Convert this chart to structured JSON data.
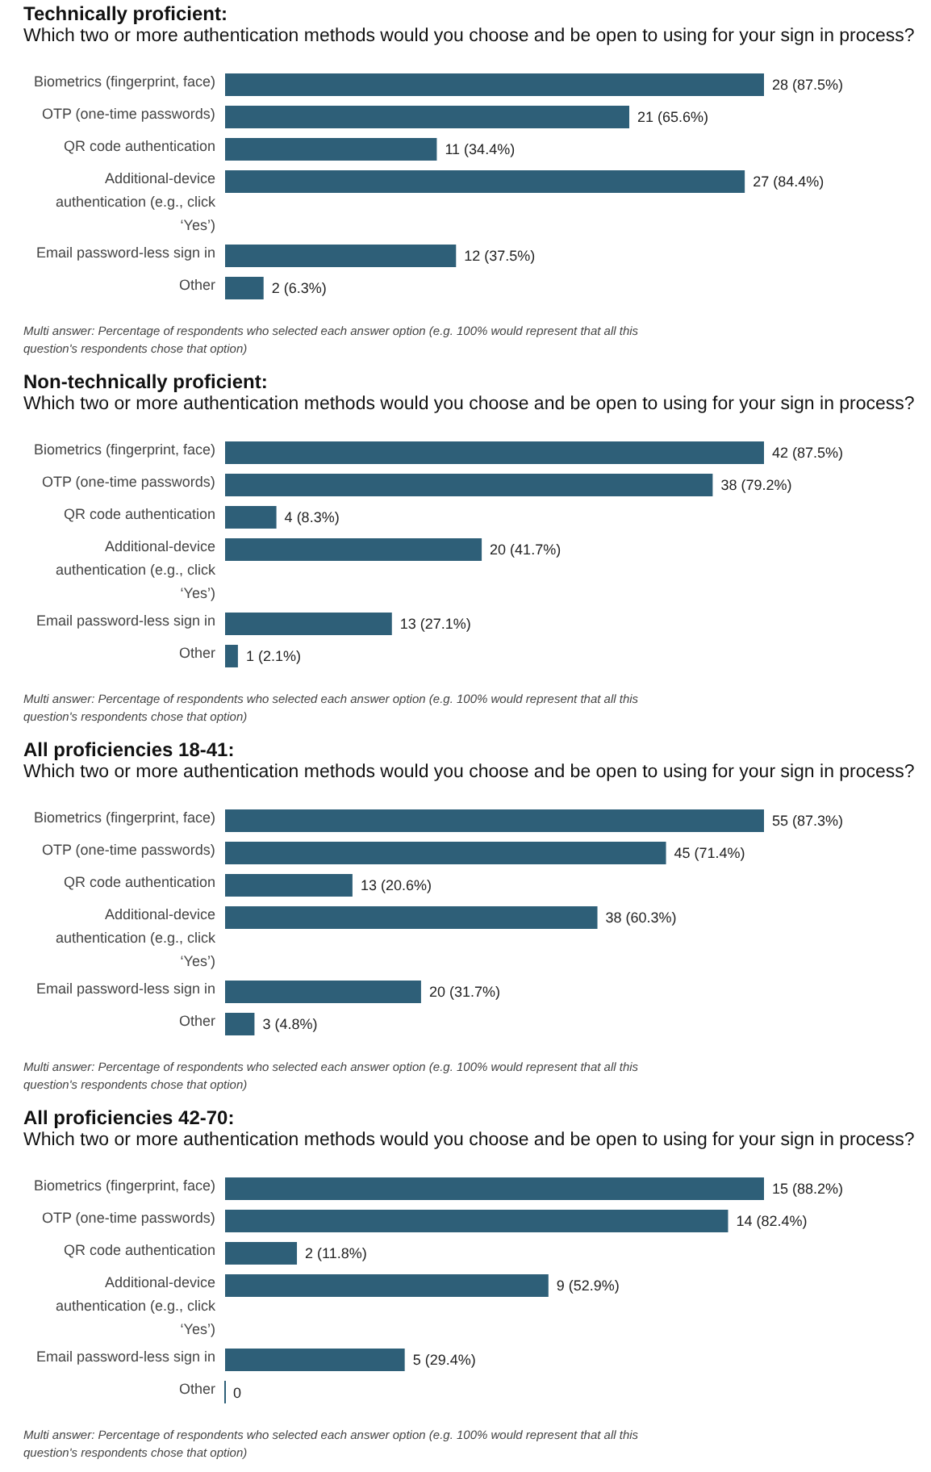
{
  "chart_data": [
    {
      "type": "bar",
      "orientation": "horizontal",
      "title": "Technically proficient:",
      "subtitle": "Which two or more authentication methods would you choose and be open to using for your sign in process?",
      "categories": [
        "Biometrics (fingerprint, face)",
        "OTP (one-time passwords)",
        "QR code authentication",
        "Additional-device authentication (e.g., click ‘Yes’)",
        "Email password-less sign in",
        "Other"
      ],
      "color": "#2e5f78",
      "values": [
        28,
        21,
        11,
        27,
        12,
        2
      ],
      "value_labels": [
        "28 (87.5%)",
        "21 (65.6%)",
        "11 (34.4%)",
        "27 (84.4%)",
        "12 (37.5%)",
        "2 (6.3%)"
      ],
      "annotations": [
        "Multi answer: Percentage of respondents who selected each answer option (e.g. 100% would represent that all this question's respondents chose that option)"
      ]
    },
    {
      "type": "bar",
      "orientation": "horizontal",
      "title": "Non-technically proficient:",
      "subtitle": "Which two or more authentication methods would you choose and be open to using for your sign in process?",
      "categories": [
        "Biometrics (fingerprint, face)",
        "OTP (one-time passwords)",
        "QR code authentication",
        "Additional-device authentication (e.g., click ‘Yes’)",
        "Email password-less sign in",
        "Other"
      ],
      "color": "#2e5f78",
      "values": [
        42,
        38,
        4,
        20,
        13,
        1
      ],
      "value_labels": [
        "42 (87.5%)",
        "38 (79.2%)",
        "4 (8.3%)",
        "20 (41.7%)",
        "13 (27.1%)",
        "1 (2.1%)"
      ],
      "annotations": [
        "Multi answer: Percentage of respondents who selected each answer option (e.g. 100% would represent that all this question's respondents chose that option)"
      ]
    },
    {
      "type": "bar",
      "orientation": "horizontal",
      "title": "All proficiencies 18-41:",
      "subtitle": "Which two or more authentication methods would you choose and be open to using for your sign in process?",
      "categories": [
        "Biometrics (fingerprint, face)",
        "OTP (one-time passwords)",
        "QR code authentication",
        "Additional-device authentication (e.g., click ‘Yes’)",
        "Email password-less sign in",
        "Other"
      ],
      "color": "#2e5f78",
      "values": [
        55,
        45,
        13,
        38,
        20,
        3
      ],
      "value_labels": [
        "55 (87.3%)",
        "45 (71.4%)",
        "13 (20.6%)",
        "38 (60.3%)",
        "20 (31.7%)",
        "3 (4.8%)"
      ],
      "annotations": [
        "Multi answer: Percentage of respondents who selected each answer option (e.g. 100% would represent that all this question's respondents chose that option)"
      ]
    },
    {
      "type": "bar",
      "orientation": "horizontal",
      "title": "All proficiencies 42-70:",
      "subtitle": "Which two or more authentication methods would you choose and be open to using for your sign in process?",
      "categories": [
        "Biometrics (fingerprint, face)",
        "OTP (one-time passwords)",
        "QR code authentication",
        "Additional-device authentication (e.g., click ‘Yes’)",
        "Email password-less sign in",
        "Other"
      ],
      "color": "#2e5f78",
      "values": [
        15,
        14,
        2,
        9,
        5,
        0
      ],
      "value_labels": [
        "15 (88.2%)",
        "14 (82.4%)",
        "2 (11.8%)",
        "9 (52.9%)",
        "5 (29.4%)",
        "0"
      ],
      "annotations": [
        "Multi answer: Percentage of respondents who selected each answer option (e.g. 100% would represent that all this question's respondents chose that option)"
      ]
    }
  ]
}
